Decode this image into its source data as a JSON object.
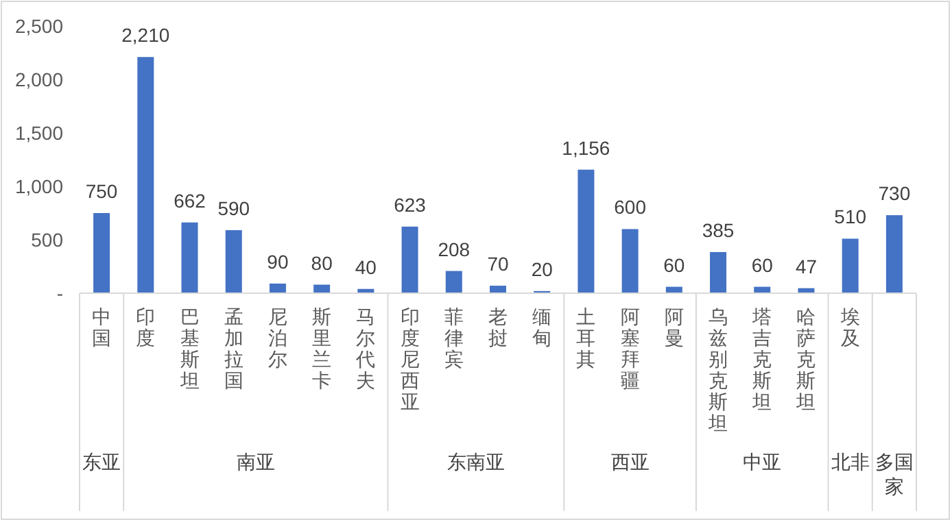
{
  "chart_data": {
    "type": "bar",
    "categories": [
      "中国",
      "印度",
      "巴基斯坦",
      "孟加拉国",
      "尼泊尔",
      "斯里兰卡",
      "马尔代夫",
      "印度尼西亚",
      "菲律宾",
      "老挝",
      "缅甸",
      "土耳其",
      "阿塞拜疆",
      "阿曼",
      "乌兹别克斯坦",
      "塔吉克斯坦",
      "哈萨克斯坦",
      "埃及",
      null
    ],
    "values": [
      750,
      2210,
      662,
      590,
      90,
      80,
      40,
      623,
      208,
      70,
      20,
      1156,
      600,
      60,
      385,
      60,
      47,
      510,
      730
    ],
    "value_labels": [
      "750",
      "2,210",
      "662",
      "590",
      "90",
      "80",
      "40",
      "623",
      "208",
      "70",
      "20",
      "1,156",
      "600",
      "60",
      "385",
      "60",
      "47",
      "510",
      "730"
    ],
    "color": "#4472c4",
    "ylim": [
      0,
      2500
    ],
    "yticks": [
      {
        "value": 0,
        "label": "-"
      },
      500,
      {
        "value": 1000,
        "label": "1,000"
      },
      {
        "value": 1500,
        "label": "1,500"
      },
      {
        "value": 2000,
        "label": "2,000"
      },
      {
        "value": 2500,
        "label": "2,500"
      }
    ],
    "grid": false,
    "annotations": [
      "东亚",
      "南亚",
      "东南亚",
      "西亚",
      "中亚",
      "北非",
      "多国家"
    ]
  }
}
